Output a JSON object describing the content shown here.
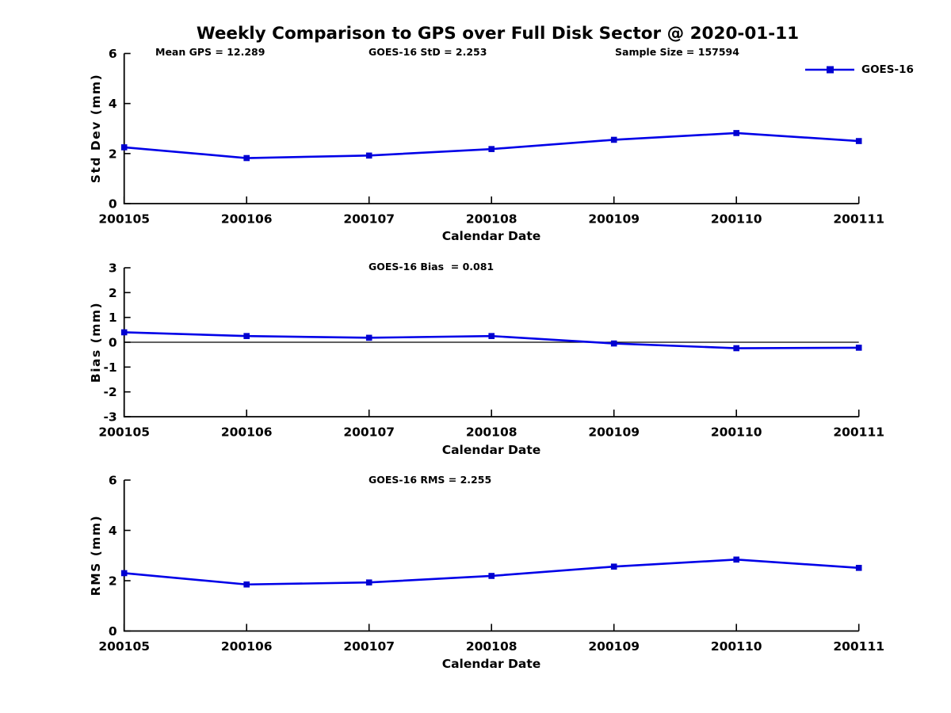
{
  "title": "Weekly Comparison to GPS over Full Disk Sector @ 2020-01-11",
  "colors": {
    "line": "#0000E8",
    "marker": "#0000D0",
    "axis": "#000000",
    "background": "#FFFFFF"
  },
  "chart_data": {
    "type": "line",
    "series_name": "GOES-16",
    "x_label": "Calendar Date",
    "categories": [
      "200105",
      "200106",
      "200107",
      "200108",
      "200109",
      "200110",
      "200111"
    ],
    "legend": {
      "position": "top-right",
      "label": "GOES-16"
    },
    "subplots": [
      {
        "name": "std_dev",
        "ylabel": "Std Dev (mm)",
        "ylim": [
          0,
          6
        ],
        "yticks": [
          0,
          2,
          4,
          6
        ],
        "zero_line": false,
        "annotations": [
          {
            "text": "Mean GPS = 12.289"
          },
          {
            "text": "GOES-16 StD = 2.253"
          },
          {
            "text": "Sample Size = 157594"
          }
        ],
        "values": [
          2.25,
          1.82,
          1.92,
          2.18,
          2.55,
          2.82,
          2.5
        ]
      },
      {
        "name": "bias",
        "ylabel": "Bias (mm)",
        "ylim": [
          -3,
          3
        ],
        "yticks": [
          3,
          2,
          1,
          0,
          -1,
          -2,
          -3
        ],
        "zero_line": true,
        "annotations": [
          {
            "text": "GOES-16 Bias  = 0.081"
          }
        ],
        "values": [
          0.4,
          0.25,
          0.18,
          0.25,
          -0.05,
          -0.24,
          -0.22
        ]
      },
      {
        "name": "rms",
        "ylabel": "RMS (mm)",
        "ylim": [
          0,
          6
        ],
        "yticks": [
          0,
          2,
          4,
          6
        ],
        "zero_line": false,
        "annotations": [
          {
            "text": "GOES-16 RMS = 2.255"
          }
        ],
        "values": [
          2.3,
          1.85,
          1.93,
          2.19,
          2.56,
          2.84,
          2.51
        ]
      }
    ]
  }
}
